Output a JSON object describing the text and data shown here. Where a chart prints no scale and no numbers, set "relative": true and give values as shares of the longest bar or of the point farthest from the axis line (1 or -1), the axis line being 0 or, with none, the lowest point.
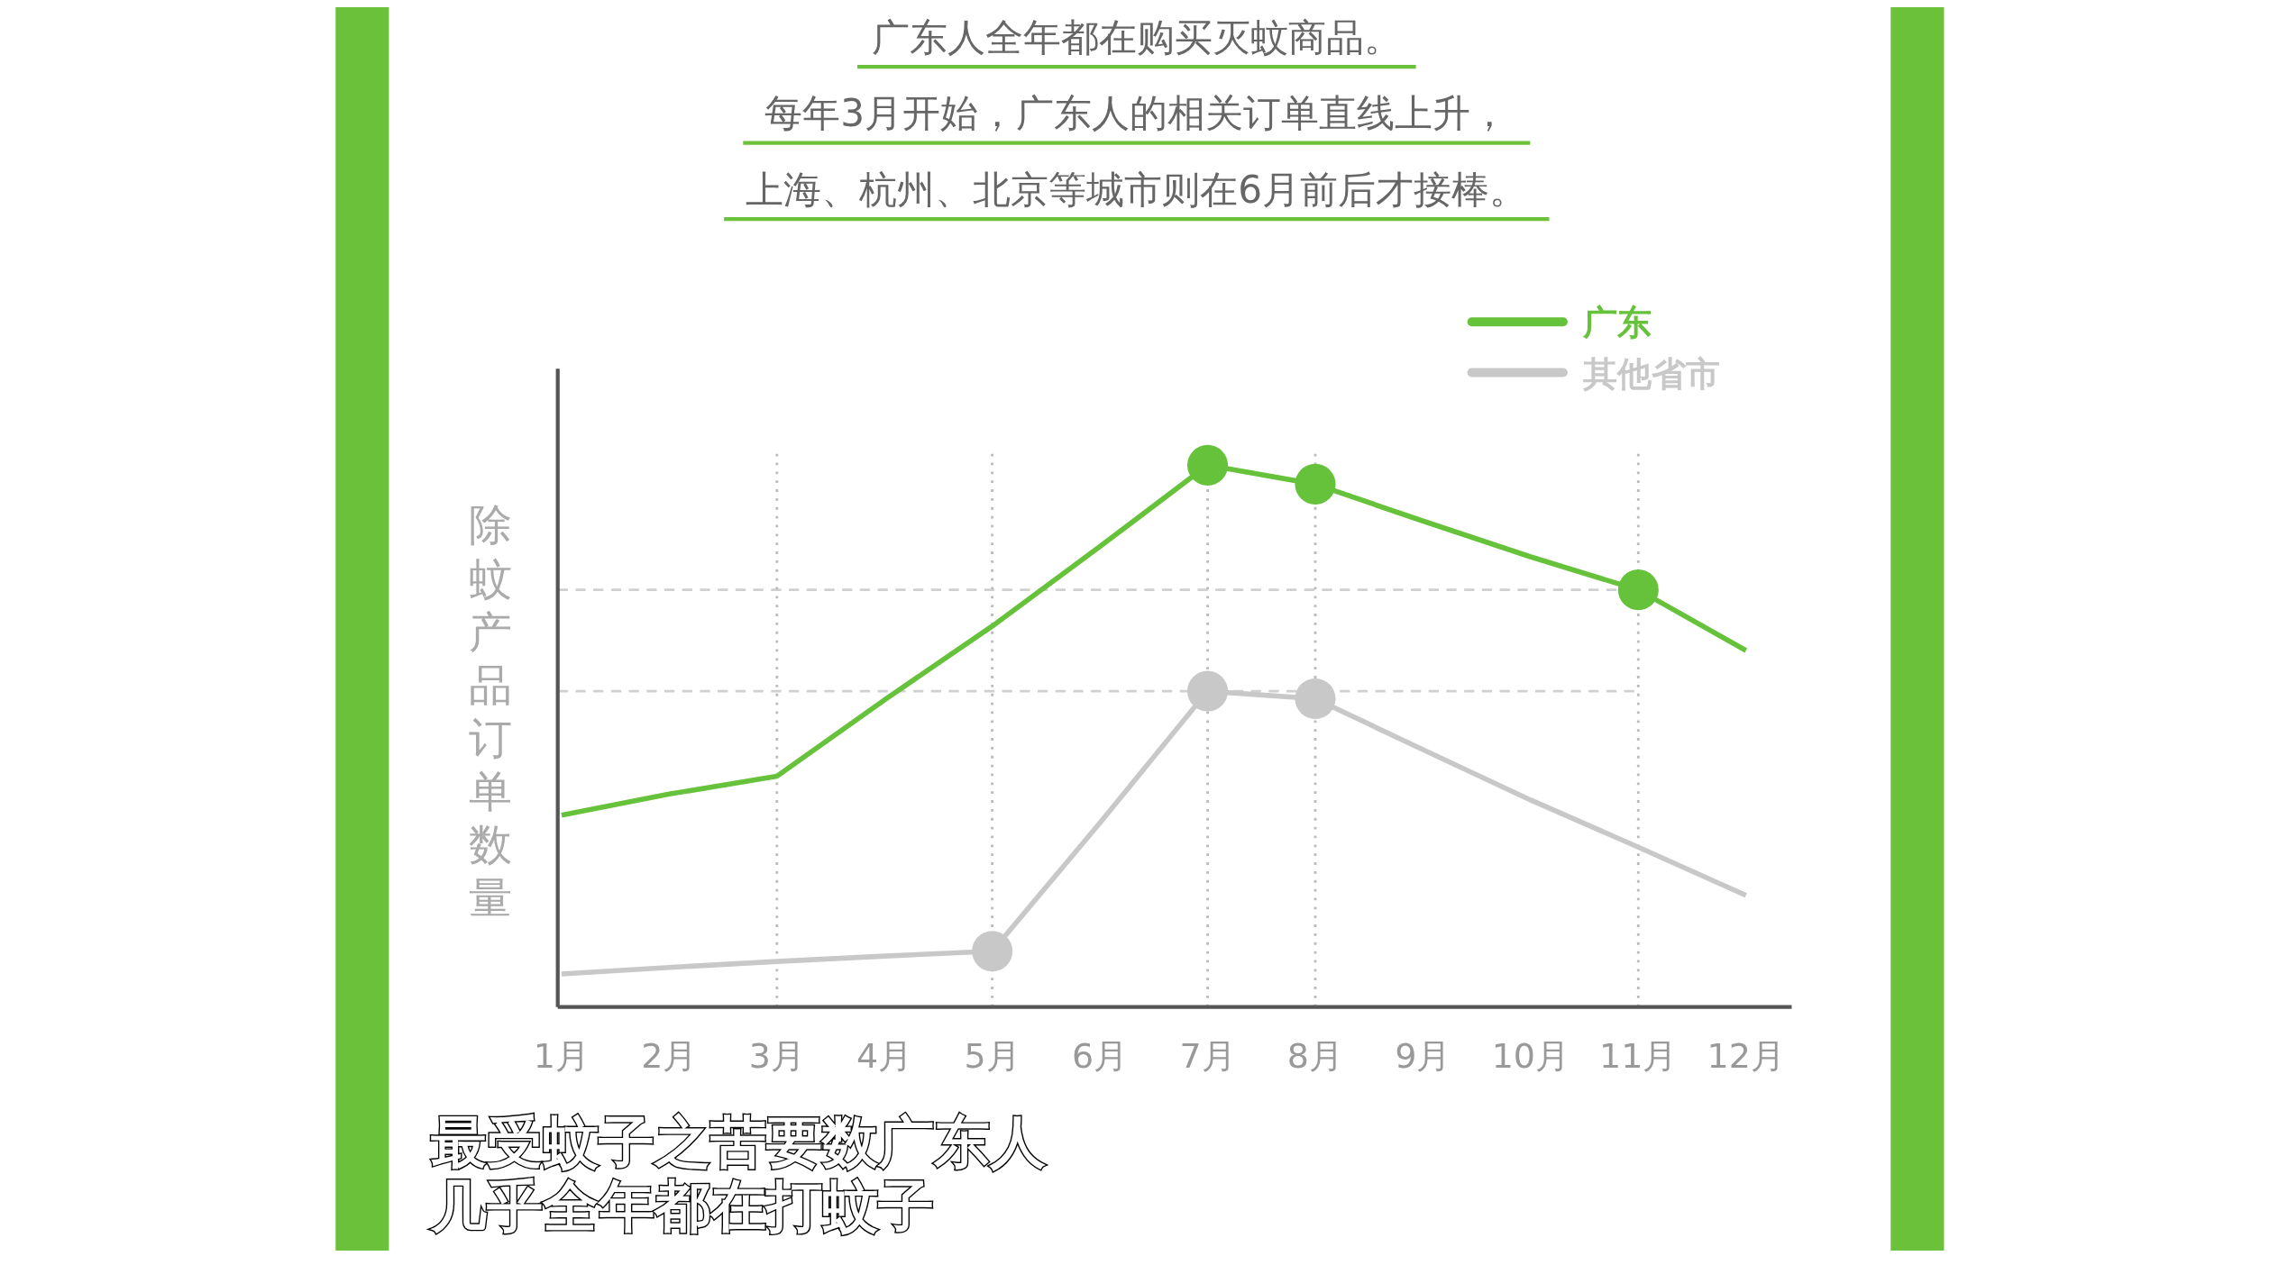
{
  "chart_data": {
    "type": "line",
    "title": "广东人全年都在购买灭蚊商品。",
    "subtitle": "每年3月开始，广东人的相关订单直线上升，上海、杭州、北京等城市则在6月前后才接棒。",
    "ylabel": "除蚊产品订单数量",
    "relative": true,
    "legend": "top right",
    "line_style": "solid",
    "categories": [
      "1月",
      "2月",
      "3月",
      "4月",
      "5月",
      "6月",
      "7月",
      "8月",
      "9月",
      "10月",
      "11月",
      "12月"
    ],
    "series": [
      {
        "name": "广东",
        "color": "#66c23a",
        "values": [
          0.354,
          0.393,
          0.426,
          0.567,
          0.703,
          0.85,
          1,
          0.965,
          0.897,
          0.831,
          0.77,
          0.658
        ]
      },
      {
        "name": "其他省市",
        "color": "#c8c8c8",
        "values": [
          0.061,
          0.073,
          0.084,
          0.094,
          0.103,
          0.34,
          0.583,
          0.569,
          0.475,
          0.382,
          0.295,
          0.206
        ]
      },
      {
        "type": "scatter",
        "color": "#66c23a",
        "x": [
          "7月",
          "8月",
          "11月"
        ],
        "values": [
          1,
          0.965,
          0.77
        ]
      },
      {
        "type": "scatter",
        "color": "#c8c8c8",
        "x": [
          "5月",
          "7月",
          "8月"
        ],
        "values": [
          0.103,
          0.583,
          0.569
        ]
      }
    ],
    "ref_lines": [
      {
        "axis": "y",
        "value": 0.77,
        "color": "#d0d0d0",
        "line_style": "dashed"
      },
      {
        "axis": "y",
        "value": 0.583,
        "color": "#d0d0d0",
        "line_style": "dashed"
      },
      {
        "axis": "x",
        "value": "3月",
        "color": "#bbbbbb",
        "line_style": "dotted"
      },
      {
        "axis": "x",
        "value": "5月",
        "color": "#bbbbbb",
        "line_style": "dotted"
      },
      {
        "axis": "x",
        "value": "7月",
        "color": "#bbbbbb",
        "line_style": "dotted"
      },
      {
        "axis": "x",
        "value": "8月",
        "color": "#bbbbbb",
        "line_style": "dotted"
      },
      {
        "axis": "x",
        "value": "11月",
        "color": "#bbbbbb",
        "line_style": "dotted"
      }
    ],
    "annotations": [
      "最受蚊子之苦要数广东人",
      "几乎全年都在打蚊子"
    ]
  }
}
